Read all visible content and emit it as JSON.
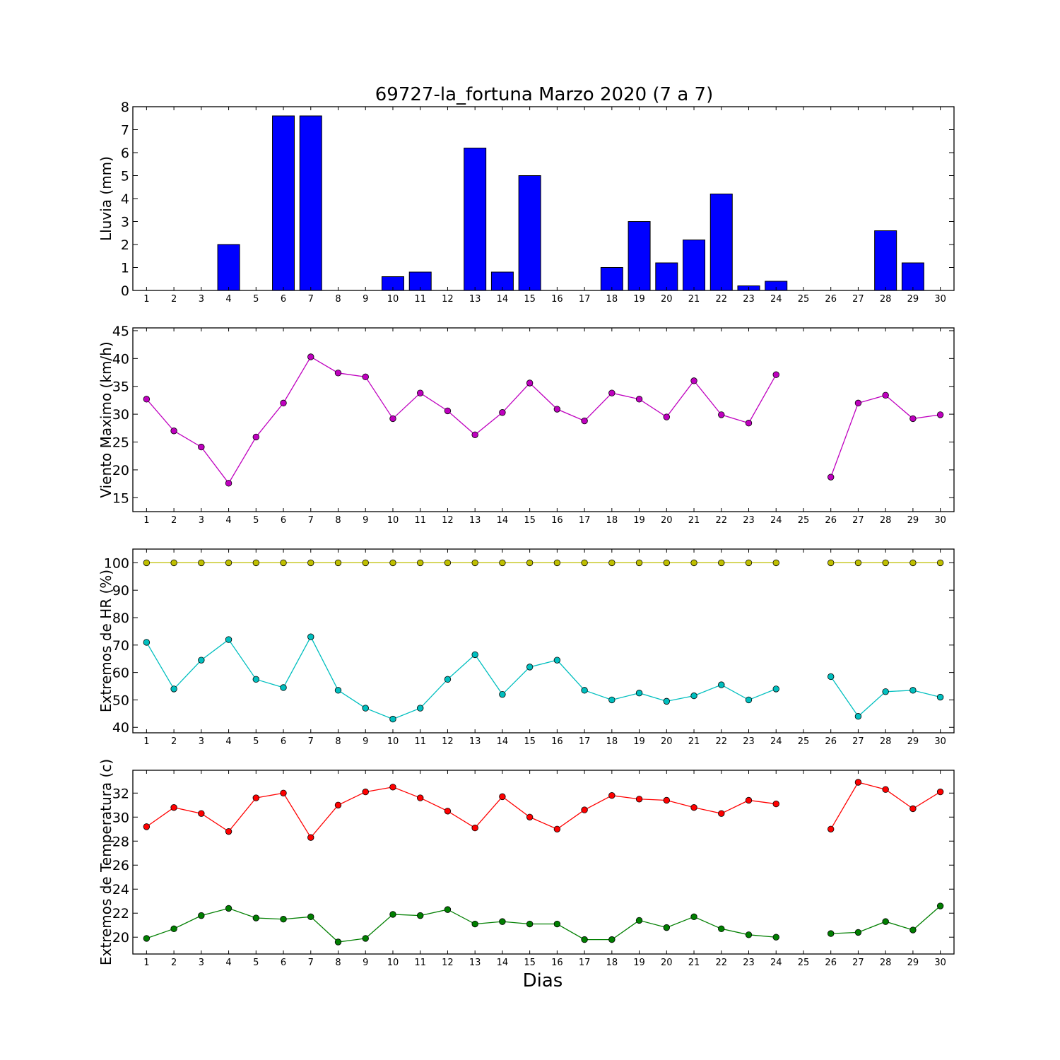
{
  "figure": {
    "title": "69727-la_fortuna Marzo 2020  (7 a 7)",
    "xlabel": "Dias"
  },
  "chart_data": [
    {
      "type": "bar",
      "ylabel": "Lluvia (mm)",
      "ylim": [
        0,
        8
      ],
      "yticks": [
        0,
        1,
        2,
        3,
        4,
        5,
        6,
        7,
        8
      ],
      "x": [
        1,
        2,
        3,
        4,
        5,
        6,
        7,
        8,
        9,
        10,
        11,
        12,
        13,
        14,
        15,
        16,
        17,
        18,
        19,
        20,
        21,
        22,
        23,
        24,
        25,
        26,
        27,
        28,
        29,
        30
      ],
      "series": [
        {
          "color": "#0000ff",
          "values": [
            0,
            0,
            0,
            2.0,
            0,
            7.6,
            7.6,
            0,
            0,
            0.6,
            0.8,
            0,
            6.2,
            0.8,
            5.0,
            0,
            0,
            1.0,
            3.0,
            1.2,
            2.2,
            4.2,
            0.2,
            0.4,
            0,
            0,
            0,
            2.6,
            1.2,
            0
          ]
        }
      ]
    },
    {
      "type": "line",
      "ylabel": "Viento Maximo (km/h)",
      "ylim": [
        12.5,
        45.5
      ],
      "yticks": [
        15,
        20,
        25,
        30,
        35,
        40,
        45
      ],
      "x": [
        1,
        2,
        3,
        4,
        5,
        6,
        7,
        8,
        9,
        10,
        11,
        12,
        13,
        14,
        15,
        16,
        17,
        18,
        19,
        20,
        21,
        22,
        23,
        24,
        25,
        26,
        27,
        28,
        29,
        30
      ],
      "series": [
        {
          "color": "#bf00bf",
          "values": [
            32.7,
            27.0,
            24.1,
            17.6,
            25.9,
            32.0,
            40.3,
            37.4,
            36.7,
            29.2,
            33.8,
            30.6,
            26.3,
            30.3,
            35.6,
            30.9,
            28.8,
            33.8,
            32.7,
            29.5,
            36.0,
            29.9,
            28.4,
            37.1,
            null,
            18.7,
            32.0,
            33.4,
            29.2,
            29.9
          ]
        }
      ]
    },
    {
      "type": "line",
      "ylabel": "Extremos de HR (%)",
      "ylim": [
        38,
        105
      ],
      "yticks": [
        40,
        50,
        60,
        70,
        80,
        90,
        100
      ],
      "x": [
        1,
        2,
        3,
        4,
        5,
        6,
        7,
        8,
        9,
        10,
        11,
        12,
        13,
        14,
        15,
        16,
        17,
        18,
        19,
        20,
        21,
        22,
        23,
        24,
        25,
        26,
        27,
        28,
        29,
        30
      ],
      "series": [
        {
          "color": "#bfbf00",
          "values": [
            100,
            100,
            100,
            100,
            100,
            100,
            100,
            100,
            100,
            100,
            100,
            100,
            100,
            100,
            100,
            100,
            100,
            100,
            100,
            100,
            100,
            100,
            100,
            100,
            null,
            100,
            100,
            100,
            100,
            100
          ]
        },
        {
          "color": "#00bfbf",
          "values": [
            71,
            54,
            64.5,
            72,
            57.5,
            54.5,
            73,
            53.5,
            47,
            43,
            47,
            57.5,
            66.5,
            52,
            62,
            64.5,
            53.5,
            50,
            52.5,
            49.5,
            51.5,
            55.5,
            50,
            54,
            null,
            58.5,
            44,
            53,
            53.5,
            51
          ]
        }
      ]
    },
    {
      "type": "line",
      "ylabel": "Extremos de Temperatura (c)",
      "ylim": [
        18.6,
        33.9
      ],
      "yticks": [
        20,
        22,
        24,
        26,
        28,
        30,
        32
      ],
      "x": [
        1,
        2,
        3,
        4,
        5,
        6,
        7,
        8,
        9,
        10,
        11,
        12,
        13,
        14,
        15,
        16,
        17,
        18,
        19,
        20,
        21,
        22,
        23,
        24,
        25,
        26,
        27,
        28,
        29,
        30
      ],
      "series": [
        {
          "color": "#ff0000",
          "values": [
            29.2,
            30.8,
            30.3,
            28.8,
            31.6,
            32.0,
            28.3,
            31.0,
            32.1,
            32.5,
            31.6,
            30.5,
            29.1,
            31.7,
            30.0,
            29.0,
            30.6,
            31.8,
            31.5,
            31.4,
            30.8,
            30.3,
            31.4,
            31.1,
            null,
            29.0,
            32.9,
            32.3,
            30.7,
            32.1
          ]
        },
        {
          "color": "#007f00",
          "values": [
            19.9,
            20.7,
            21.8,
            22.4,
            21.6,
            21.5,
            21.7,
            19.6,
            19.9,
            21.9,
            21.8,
            22.3,
            21.1,
            21.3,
            21.1,
            21.1,
            19.8,
            19.8,
            21.4,
            20.8,
            21.7,
            20.7,
            20.2,
            20.0,
            null,
            20.3,
            20.4,
            21.3,
            20.6,
            22.6
          ]
        }
      ]
    }
  ]
}
